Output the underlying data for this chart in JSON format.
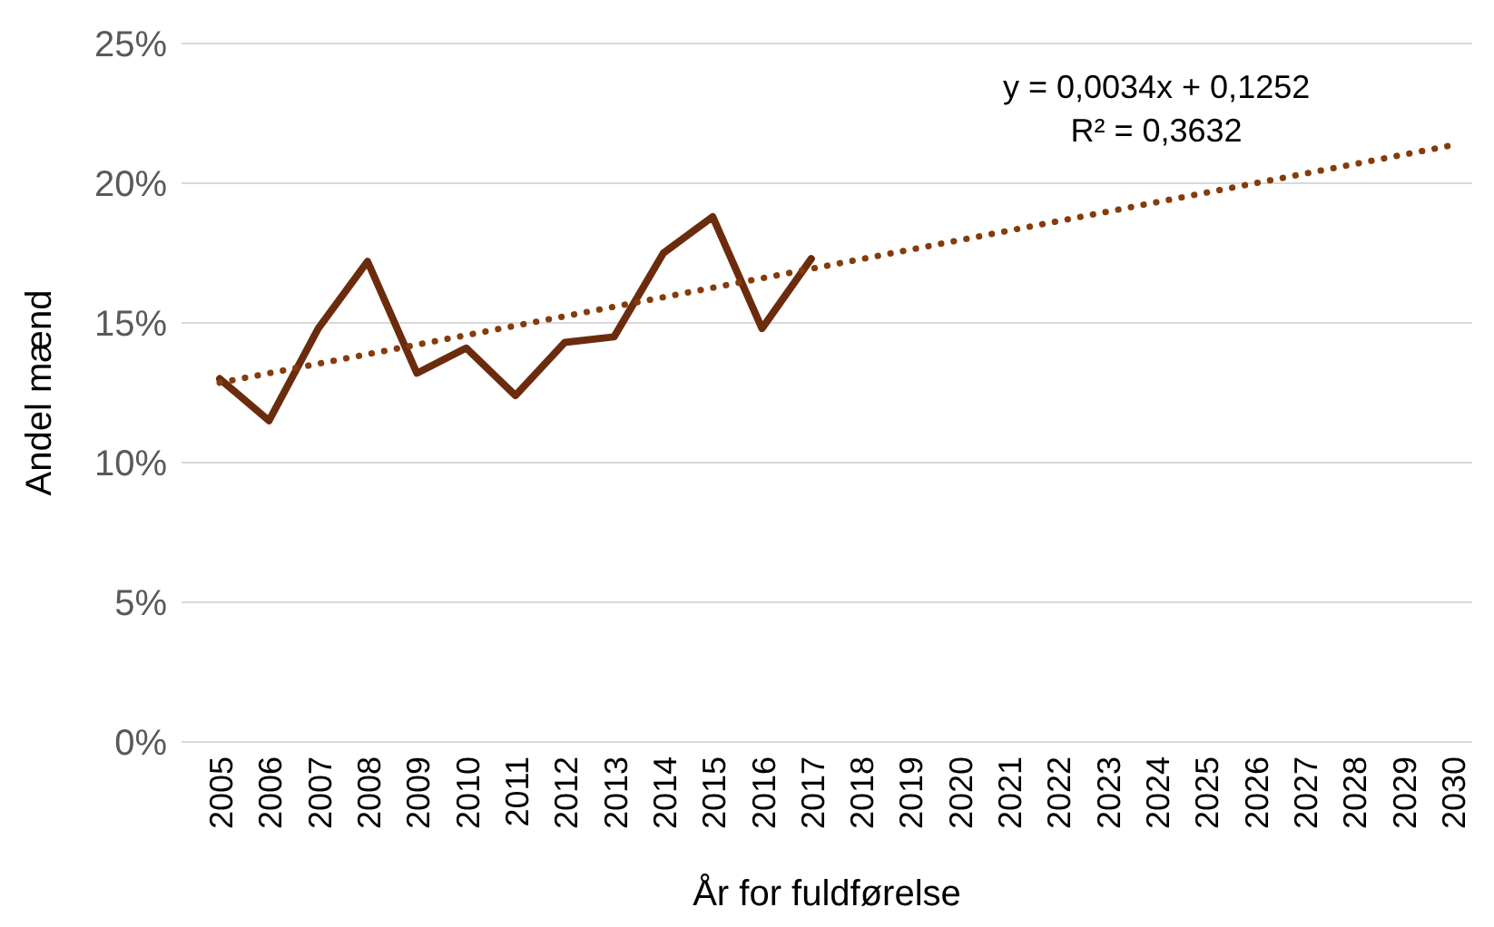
{
  "chart_data": {
    "type": "line",
    "ylabel": "Andel mænd",
    "xlabel": "År for fuldførelse",
    "categories": [
      "2005",
      "2006",
      "2007",
      "2008",
      "2009",
      "2010",
      "2011",
      "2012",
      "2013",
      "2014",
      "2015",
      "2016",
      "2017",
      "2018",
      "2019",
      "2020",
      "2021",
      "2022",
      "2023",
      "2024",
      "2025",
      "2026",
      "2027",
      "2028",
      "2029",
      "2030"
    ],
    "series": [
      {
        "color": "#6b2c0e",
        "values": [
          0.13,
          0.115,
          0.148,
          0.172,
          0.132,
          0.141,
          0.124,
          0.143,
          0.145,
          0.175,
          0.188,
          0.148,
          0.173,
          null,
          null,
          null,
          null,
          null,
          null,
          null,
          null,
          null,
          null,
          null,
          null,
          null
        ],
        "line_style": "solid"
      },
      {
        "color": "#843c0c",
        "values": [
          0.1286,
          0.132,
          0.1354,
          0.1388,
          0.1422,
          0.1456,
          0.149,
          0.1524,
          0.1558,
          0.1592,
          0.1626,
          0.166,
          0.1694,
          0.1728,
          0.1762,
          0.1796,
          0.183,
          0.1864,
          0.1898,
          0.1932,
          0.1966,
          0.2,
          0.2034,
          0.2068,
          0.2102,
          0.2136
        ],
        "line_style": "dotted"
      }
    ],
    "ylim": [
      0,
      0.25
    ],
    "yticks": [
      {
        "value": 0,
        "label": "0%"
      },
      {
        "value": 0.05,
        "label": "5%"
      },
      {
        "value": 0.1,
        "label": "10%"
      },
      {
        "value": 0.15,
        "label": "15%"
      },
      {
        "value": 0.2,
        "label": "20%"
      },
      {
        "value": 0.25,
        "label": "25%"
      }
    ],
    "grid": "y",
    "annotations": [
      "y = 0,0034x + 0,1252",
      "R² = 0,3632"
    ]
  }
}
